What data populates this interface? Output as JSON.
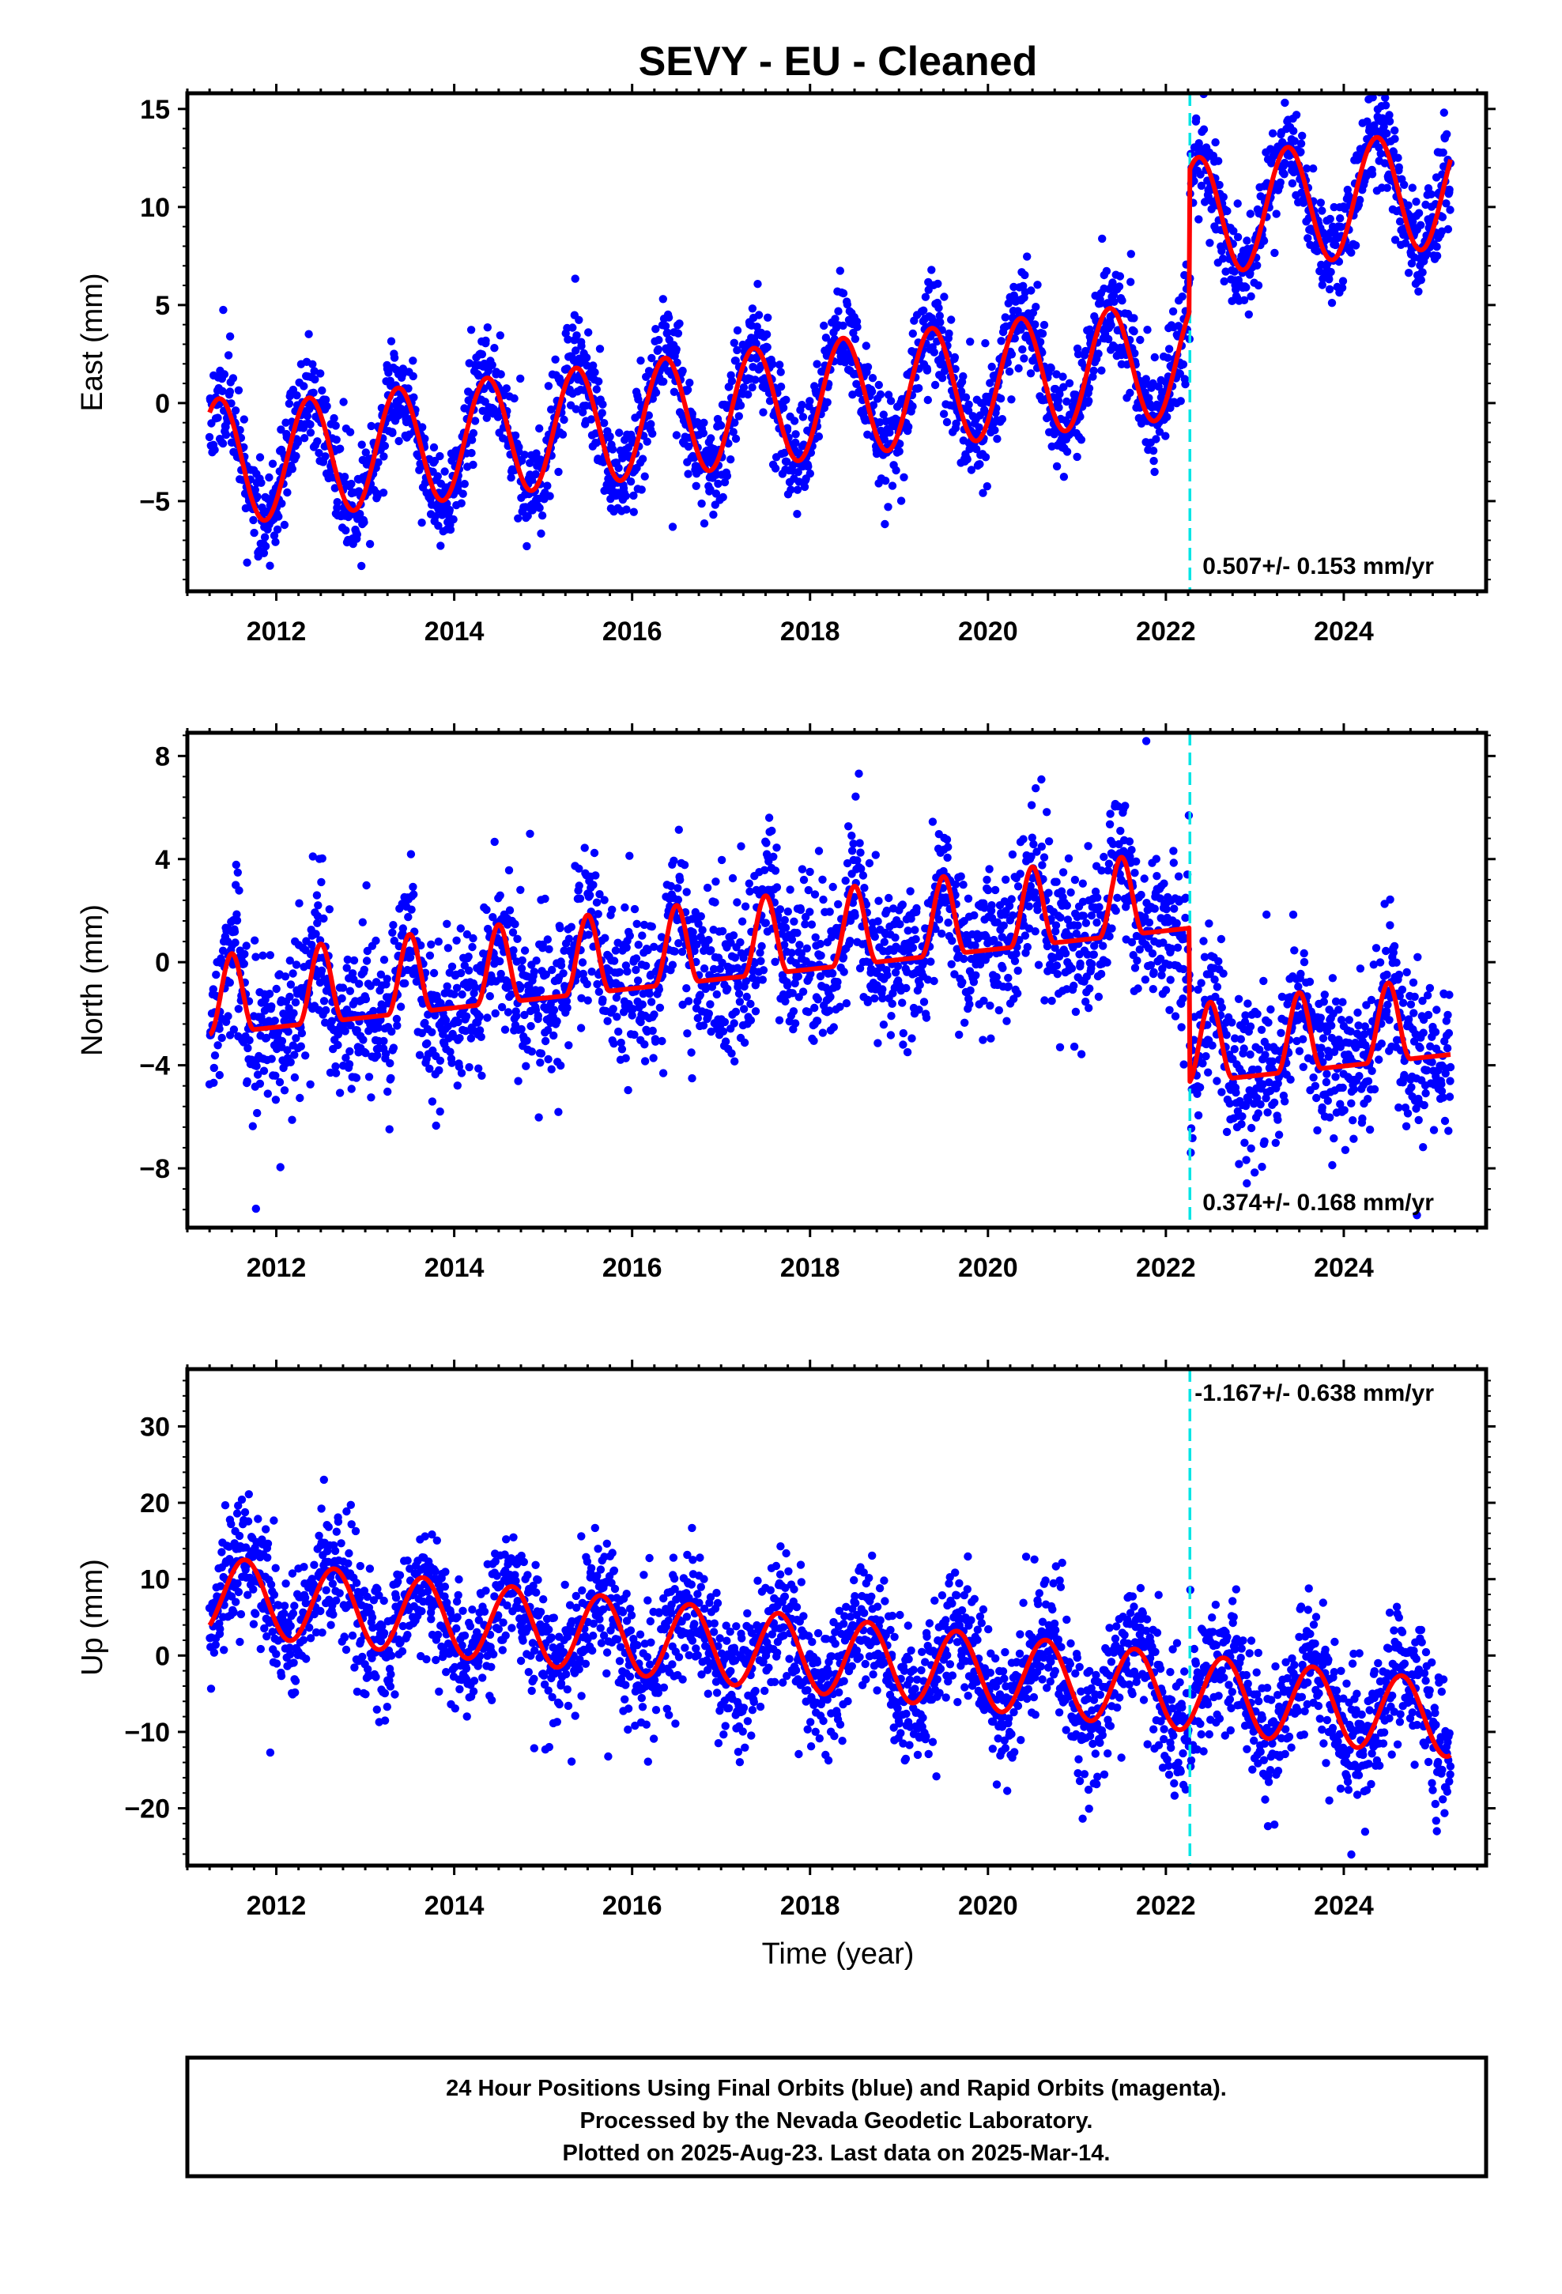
{
  "figure": {
    "title": "SEVY  - EU - Cleaned",
    "xlabel": "Time (year)",
    "footer": [
      "24 Hour Positions Using Final Orbits (blue) and Rapid Orbits (magenta).",
      "Processed by the Nevada Geodetic Laboratory.",
      "Plotted on 2025-Aug-23. Last data on 2025-Mar-14."
    ],
    "colors": {
      "data": "#0000ff",
      "model": "#ff0000",
      "offset_line": "#00e5e5",
      "frame": "#000000"
    }
  },
  "chart_data": [
    {
      "type": "scatter",
      "component": "East",
      "ylabel": "East (mm)",
      "rate_label": "0.507+/- 0.153 mm/yr",
      "rate_label_position": "bottom-right",
      "xlim": [
        2011.0,
        2025.6
      ],
      "ylim": [
        -9.6,
        15.8
      ],
      "yticks": [
        -5,
        0,
        5,
        10,
        15
      ],
      "xticks": [
        2012,
        2014,
        2016,
        2018,
        2020,
        2022,
        2024
      ],
      "data_start": 2011.25,
      "data_end": 2025.2,
      "offset_epoch": 2022.27,
      "model": {
        "base": -3.3,
        "rate": 0.507,
        "amplitude": 3.0,
        "annual_peak": 0.37,
        "step": 7.2,
        "start_bump": 0.7
      },
      "scatter": {
        "count": 2700,
        "spread": 1.3,
        "seed": 11
      },
      "series": [
        {
          "name": "",
          "values_desc": ""
        }
      ],
      "grid": false,
      "legend": "none"
    },
    {
      "type": "scatter",
      "component": "North",
      "ylabel": "North (mm)",
      "rate_label": "0.374+/- 0.168 mm/yr",
      "rate_label_position": "bottom-right",
      "xlim": [
        2011.0,
        2025.6
      ],
      "ylim": [
        -10.3,
        8.9
      ],
      "yticks": [
        -8,
        -4,
        0,
        4,
        8
      ],
      "xticks": [
        2012,
        2014,
        2016,
        2018,
        2020,
        2022,
        2024
      ],
      "data_start": 2011.25,
      "data_end": 2025.2,
      "offset_epoch": 2022.27,
      "model": {
        "base": -2.2,
        "rate": 0.374,
        "amplitude": 1.9,
        "annual_peak": 0.5,
        "step": -6.0,
        "pulse": true
      },
      "scatter": {
        "count": 2700,
        "spread": 1.5,
        "seed": 23
      },
      "grid": false,
      "legend": "none"
    },
    {
      "type": "scatter",
      "component": "Up",
      "ylabel": "Up (mm)",
      "rate_label": "-1.167+/- 0.638 mm/yr",
      "rate_label_position": "top-right",
      "xlim": [
        2011.0,
        2025.6
      ],
      "ylim": [
        -27.5,
        37.5
      ],
      "yticks": [
        -20,
        -10,
        0,
        10,
        20,
        30
      ],
      "xticks": [
        2012,
        2014,
        2016,
        2018,
        2020,
        2022,
        2024
      ],
      "data_start": 2011.25,
      "data_end": 2025.2,
      "offset_epoch": 2022.27,
      "model": {
        "base": 8.0,
        "rate": -1.167,
        "amplitude": 5.0,
        "annual_peak": 0.65,
        "step": 0.0
      },
      "scatter": {
        "count": 2700,
        "spread": 4.2,
        "seed": 37
      },
      "grid": false,
      "legend": "none"
    }
  ]
}
